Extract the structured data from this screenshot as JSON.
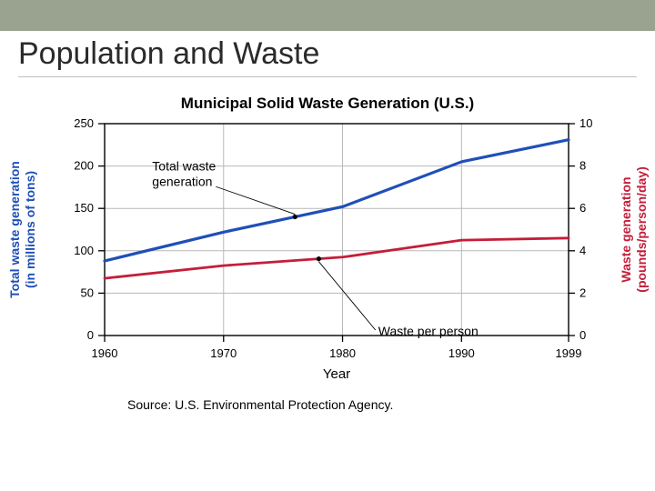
{
  "topbar": {
    "bg": "#9aa390"
  },
  "title": {
    "text": "Population and Waste",
    "color": "#2a2a2a",
    "fontsize": 34
  },
  "chart": {
    "type": "line-dual-axis",
    "title": "Municipal Solid Waste Generation (U.S.)",
    "title_fontsize": 17,
    "x": {
      "label": "Year",
      "label_fontsize": 15,
      "ticks": [
        1960,
        1970,
        1980,
        1990,
        1999
      ],
      "min": 1960,
      "max": 1999
    },
    "y_left": {
      "label": "Total waste generation\n(in millions of tons)",
      "label_color": "#1f4fb8",
      "label_fontsize": 14,
      "ticks": [
        0,
        50,
        100,
        150,
        200,
        250
      ],
      "min": 0,
      "max": 250
    },
    "y_right": {
      "label": "Waste generation\n(pounds/person/day)",
      "label_color": "#c41e3a",
      "label_fontsize": 14,
      "ticks": [
        0,
        2,
        4,
        6,
        8,
        10
      ],
      "min": 0,
      "max": 10
    },
    "series": [
      {
        "name": "Total waste generation",
        "axis": "left",
        "color": "#1f4fb8",
        "stroke_width": 3.2,
        "points": [
          {
            "x": 1960,
            "y": 88
          },
          {
            "x": 1970,
            "y": 122
          },
          {
            "x": 1980,
            "y": 152
          },
          {
            "x": 1990,
            "y": 205
          },
          {
            "x": 1999,
            "y": 231
          }
        ],
        "callout": {
          "text": "Total waste\ngeneration",
          "at_x": 1976,
          "label_x": 1964,
          "label_y": 195
        }
      },
      {
        "name": "Waste per person",
        "axis": "right",
        "color": "#c41e3a",
        "stroke_width": 2.8,
        "points": [
          {
            "x": 1960,
            "y": 2.7
          },
          {
            "x": 1970,
            "y": 3.3
          },
          {
            "x": 1980,
            "y": 3.7
          },
          {
            "x": 1990,
            "y": 4.5
          },
          {
            "x": 1999,
            "y": 4.6
          }
        ],
        "callout": {
          "text": "Waste per person",
          "at_x": 1978,
          "label_x": 1983,
          "label_y_left_scale": 52
        }
      }
    ],
    "plot": {
      "bg": "#ffffff",
      "grid_color": "#b8b8b8",
      "grid_width": 1,
      "axis_color": "#000000",
      "tick_font": 13,
      "callout_font": 14
    },
    "source": "Source: U.S. Environmental Protection Agency."
  }
}
